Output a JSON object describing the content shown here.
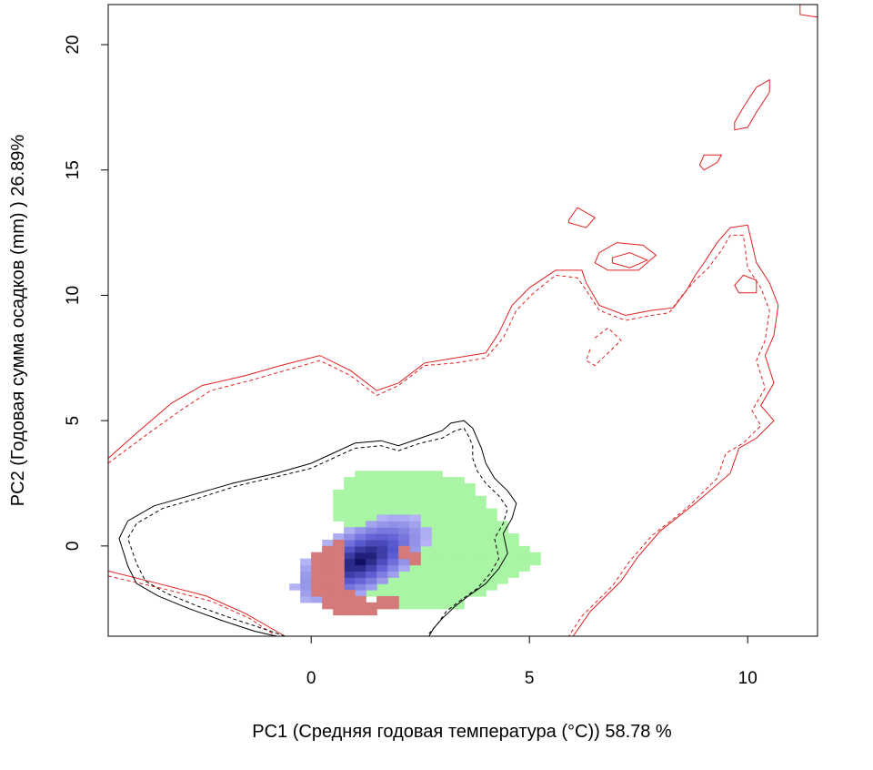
{
  "chart_data": {
    "type": "heatmap",
    "title": "",
    "xlabel": "PC1 (Средняя годовая температура (°C)) 58.78 %",
    "ylabel": "PC2 (Годовая сумма осадков  (mm) ) 26.89%",
    "xlim": [
      -4.65,
      11.6
    ],
    "ylim": [
      -3.6,
      21.6
    ],
    "x_ticks": [
      0,
      5,
      10
    ],
    "x_tick_labels": [
      "0",
      "5",
      "10"
    ],
    "y_ticks": [
      0,
      5,
      10,
      15,
      20
    ],
    "y_tick_labels": [
      "0",
      "5",
      "10",
      "15",
      "20"
    ],
    "grid": false,
    "legend": "none",
    "colors": {
      "green_region": "#aaf5a5",
      "blue_light": "#b4b4f5",
      "blue_mid": "#5a5ad2",
      "blue_dark": "#0a0a5a",
      "red_overlap": "#d47a7a",
      "red_contour": "#e02020",
      "black_contour": "#000000"
    },
    "grid_cell": 0.25,
    "green_cells": [
      [
        0.5,
        1.0,
        2.0
      ],
      [
        0.75,
        -0.5,
        2.5
      ],
      [
        1.0,
        -1.25,
        2.75
      ],
      [
        1.25,
        -2.0,
        2.75
      ],
      [
        1.5,
        -2.5,
        2.75
      ],
      [
        1.75,
        -2.5,
        2.75
      ],
      [
        2.0,
        -2.5,
        2.75
      ],
      [
        2.25,
        -2.5,
        2.75
      ],
      [
        2.5,
        -2.5,
        2.75
      ],
      [
        2.75,
        -2.5,
        2.75
      ],
      [
        3.0,
        -2.5,
        2.5
      ],
      [
        3.25,
        -2.5,
        2.5
      ],
      [
        3.5,
        -2.0,
        2.25
      ],
      [
        3.75,
        -2.0,
        1.75
      ],
      [
        4.0,
        -1.75,
        1.25
      ],
      [
        4.25,
        -1.5,
        0.75
      ],
      [
        4.5,
        -1.25,
        0.25
      ],
      [
        4.75,
        -1.0,
        -0.25
      ],
      [
        5.0,
        -0.75,
        -0.5
      ]
    ],
    "blue_density": {
      "center": [
        1.15,
        -0.55
      ],
      "major_axis": 2.1,
      "minor_axis": 1.05,
      "angle_deg": 52
    },
    "red_overlap_cells": [
      [
        0.0,
        -1.5,
        -0.5
      ],
      [
        0.0,
        -2.0,
        -1.75
      ],
      [
        0.25,
        -2.5,
        -0.25
      ],
      [
        0.5,
        -2.75,
        0.0
      ],
      [
        0.75,
        -2.75,
        -2.0
      ],
      [
        1.0,
        -2.75,
        -2.25
      ],
      [
        1.25,
        -2.75,
        -2.5
      ],
      [
        1.5,
        -2.5,
        -2.25
      ],
      [
        1.75,
        -2.5,
        -2.25
      ],
      [
        2.0,
        -0.5,
        -0.25
      ],
      [
        2.25,
        -0.75,
        -0.5
      ]
    ],
    "contours": [
      {
        "color": "red",
        "dash": false,
        "points": [
          [
            -4.65,
            3.5
          ],
          [
            -4.0,
            4.5
          ],
          [
            -3.2,
            5.7
          ],
          [
            -2.5,
            6.4
          ],
          [
            -1.5,
            6.8
          ],
          [
            -0.7,
            7.2
          ],
          [
            0.2,
            7.6
          ],
          [
            0.9,
            7.0
          ],
          [
            1.5,
            6.2
          ],
          [
            2.0,
            6.5
          ],
          [
            2.6,
            7.3
          ],
          [
            3.3,
            7.5
          ],
          [
            4.0,
            7.7
          ],
          [
            4.3,
            8.5
          ],
          [
            4.6,
            9.6
          ],
          [
            5.0,
            10.3
          ],
          [
            5.6,
            11.0
          ],
          [
            6.2,
            11.0
          ],
          [
            6.3,
            10.5
          ],
          [
            6.6,
            9.6
          ],
          [
            7.2,
            9.2
          ],
          [
            7.8,
            9.4
          ],
          [
            8.3,
            9.5
          ],
          [
            8.6,
            10.2
          ],
          [
            8.8,
            10.8
          ],
          [
            9.0,
            11.3
          ],
          [
            9.3,
            12.1
          ],
          [
            9.6,
            12.7
          ],
          [
            10.0,
            12.8
          ],
          [
            10.2,
            11.3
          ],
          [
            10.5,
            10.5
          ],
          [
            10.7,
            9.6
          ],
          [
            10.6,
            8.4
          ],
          [
            10.4,
            7.6
          ],
          [
            10.6,
            6.5
          ],
          [
            10.3,
            5.6
          ],
          [
            10.6,
            5.0
          ],
          [
            10.2,
            4.3
          ],
          [
            9.8,
            3.9
          ],
          [
            9.6,
            2.9
          ],
          [
            8.8,
            1.7
          ],
          [
            8.0,
            0.6
          ],
          [
            7.5,
            -0.4
          ],
          [
            7.1,
            -1.4
          ],
          [
            6.4,
            -2.6
          ],
          [
            6.0,
            -3.6
          ]
        ]
      },
      {
        "color": "red",
        "dash": false,
        "points": [
          [
            -4.65,
            -1.0
          ],
          [
            -3.5,
            -1.5
          ],
          [
            -2.4,
            -2.0
          ],
          [
            -1.5,
            -2.7
          ],
          [
            -0.8,
            -3.4
          ],
          [
            -0.6,
            -3.6
          ]
        ]
      },
      {
        "color": "red",
        "dash": false,
        "closed": true,
        "points": [
          [
            5.9,
            13.0
          ],
          [
            6.1,
            13.5
          ],
          [
            6.5,
            13.1
          ],
          [
            6.3,
            12.7
          ],
          [
            5.9,
            12.9
          ]
        ]
      },
      {
        "color": "red",
        "dash": false,
        "closed": true,
        "points": [
          [
            6.6,
            11.7
          ],
          [
            7.0,
            12.1
          ],
          [
            7.6,
            12.0
          ],
          [
            7.9,
            11.6
          ],
          [
            7.5,
            11.0
          ],
          [
            6.8,
            11.0
          ],
          [
            6.5,
            11.3
          ]
        ]
      },
      {
        "color": "red",
        "dash": false,
        "closed": true,
        "points": [
          [
            6.9,
            11.5
          ],
          [
            7.3,
            11.7
          ],
          [
            7.7,
            11.4
          ],
          [
            7.3,
            11.1
          ],
          [
            6.9,
            11.3
          ]
        ]
      },
      {
        "color": "red",
        "dash": false,
        "closed": true,
        "points": [
          [
            9.0,
            15.0
          ],
          [
            9.3,
            15.3
          ],
          [
            9.4,
            15.6
          ],
          [
            9.0,
            15.6
          ],
          [
            8.9,
            15.2
          ]
        ]
      },
      {
        "color": "red",
        "dash": false,
        "closed": true,
        "points": [
          [
            9.7,
            16.9
          ],
          [
            9.9,
            17.5
          ],
          [
            10.2,
            18.3
          ],
          [
            10.5,
            18.6
          ],
          [
            10.5,
            18.1
          ],
          [
            10.2,
            17.3
          ],
          [
            10.0,
            16.7
          ],
          [
            9.7,
            16.6
          ]
        ]
      },
      {
        "color": "red",
        "dash": false,
        "closed": true,
        "points": [
          [
            9.7,
            10.4
          ],
          [
            9.9,
            10.8
          ],
          [
            10.2,
            10.6
          ],
          [
            10.2,
            10.1
          ],
          [
            9.8,
            10.1
          ]
        ]
      },
      {
        "color": "red",
        "dash": false,
        "points": [
          [
            11.2,
            21.6
          ],
          [
            11.2,
            21.2
          ],
          [
            11.6,
            21.1
          ]
        ]
      },
      {
        "color": "red",
        "dash": true,
        "points": [
          [
            -4.65,
            3.3
          ],
          [
            -3.8,
            4.4
          ],
          [
            -3.0,
            5.4
          ],
          [
            -2.3,
            6.2
          ],
          [
            -1.4,
            6.6
          ],
          [
            -0.6,
            7.0
          ],
          [
            0.2,
            7.4
          ],
          [
            0.9,
            6.8
          ],
          [
            1.5,
            6.0
          ],
          [
            2.0,
            6.4
          ],
          [
            2.6,
            7.2
          ],
          [
            3.3,
            7.3
          ],
          [
            4.0,
            7.5
          ],
          [
            4.4,
            8.3
          ],
          [
            4.7,
            9.4
          ],
          [
            5.1,
            10.1
          ],
          [
            5.6,
            10.8
          ],
          [
            6.1,
            10.7
          ],
          [
            6.3,
            10.2
          ],
          [
            6.6,
            9.4
          ],
          [
            7.2,
            9.0
          ],
          [
            7.8,
            9.2
          ],
          [
            8.2,
            9.3
          ],
          [
            8.5,
            10.0
          ],
          [
            8.8,
            10.6
          ],
          [
            9.1,
            11.1
          ],
          [
            9.4,
            11.8
          ],
          [
            9.6,
            12.4
          ],
          [
            9.9,
            12.4
          ],
          [
            10.0,
            11.1
          ],
          [
            10.3,
            10.3
          ],
          [
            10.5,
            9.4
          ],
          [
            10.4,
            8.2
          ],
          [
            10.2,
            7.4
          ],
          [
            10.4,
            6.3
          ],
          [
            10.1,
            5.4
          ],
          [
            10.3,
            4.8
          ],
          [
            9.9,
            4.1
          ],
          [
            9.5,
            3.7
          ],
          [
            9.3,
            2.7
          ],
          [
            8.6,
            1.5
          ],
          [
            7.8,
            0.4
          ],
          [
            7.3,
            -0.6
          ],
          [
            6.9,
            -1.6
          ],
          [
            6.2,
            -2.8
          ],
          [
            5.9,
            -3.6
          ]
        ]
      },
      {
        "color": "red",
        "dash": true,
        "points": [
          [
            -4.65,
            -1.2
          ],
          [
            -3.4,
            -1.7
          ],
          [
            -2.3,
            -2.2
          ],
          [
            -1.4,
            -2.9
          ],
          [
            -0.8,
            -3.6
          ]
        ]
      },
      {
        "color": "red",
        "dash": true,
        "points": [
          [
            6.5,
            8.3
          ],
          [
            6.8,
            8.7
          ],
          [
            7.1,
            8.2
          ],
          [
            6.8,
            7.7
          ],
          [
            6.5,
            7.2
          ],
          [
            6.3,
            7.4
          ],
          [
            6.4,
            7.9
          ]
        ]
      },
      {
        "color": "black",
        "dash": false,
        "points": [
          [
            -0.8,
            -3.6
          ],
          [
            -1.3,
            -3.4
          ],
          [
            -2.0,
            -3.0
          ],
          [
            -2.8,
            -2.5
          ],
          [
            -3.5,
            -2.0
          ],
          [
            -4.0,
            -1.5
          ],
          [
            -4.2,
            -0.8
          ],
          [
            -4.4,
            0.3
          ],
          [
            -4.2,
            1.0
          ],
          [
            -3.6,
            1.6
          ],
          [
            -2.8,
            2.0
          ],
          [
            -1.8,
            2.5
          ],
          [
            -0.8,
            2.9
          ],
          [
            0.0,
            3.3
          ],
          [
            0.5,
            3.7
          ],
          [
            1.0,
            4.1
          ],
          [
            1.6,
            4.2
          ],
          [
            2.0,
            4.0
          ],
          [
            2.5,
            4.3
          ],
          [
            3.0,
            4.6
          ],
          [
            3.2,
            4.9
          ],
          [
            3.5,
            5.0
          ],
          [
            3.7,
            4.7
          ],
          [
            3.8,
            4.3
          ],
          [
            3.9,
            3.9
          ],
          [
            4.0,
            3.3
          ],
          [
            4.2,
            2.7
          ],
          [
            4.5,
            2.2
          ],
          [
            4.7,
            1.7
          ],
          [
            4.6,
            1.1
          ],
          [
            4.4,
            0.5
          ],
          [
            4.5,
            -0.3
          ],
          [
            4.3,
            -0.9
          ],
          [
            4.0,
            -1.5
          ],
          [
            3.6,
            -2.0
          ],
          [
            3.3,
            -2.4
          ],
          [
            3.0,
            -2.9
          ],
          [
            2.8,
            -3.3
          ],
          [
            2.7,
            -3.6
          ]
        ]
      },
      {
        "color": "black",
        "dash": true,
        "points": [
          [
            -0.6,
            -3.6
          ],
          [
            -1.1,
            -3.3
          ],
          [
            -1.8,
            -2.9
          ],
          [
            -2.6,
            -2.4
          ],
          [
            -3.3,
            -1.9
          ],
          [
            -3.8,
            -1.4
          ],
          [
            -4.0,
            -0.7
          ],
          [
            -4.2,
            0.3
          ],
          [
            -4.0,
            0.9
          ],
          [
            -3.4,
            1.5
          ],
          [
            -2.6,
            1.9
          ],
          [
            -1.7,
            2.4
          ],
          [
            -0.7,
            2.8
          ],
          [
            0.0,
            3.1
          ],
          [
            0.5,
            3.5
          ],
          [
            1.0,
            3.9
          ],
          [
            1.6,
            4.0
          ],
          [
            2.0,
            3.8
          ],
          [
            2.5,
            4.1
          ],
          [
            3.0,
            4.3
          ],
          [
            3.3,
            4.6
          ],
          [
            3.5,
            4.7
          ],
          [
            3.6,
            4.4
          ],
          [
            3.7,
            4.0
          ],
          [
            3.7,
            3.5
          ],
          [
            3.8,
            3.0
          ],
          [
            4.0,
            2.5
          ],
          [
            4.3,
            2.0
          ],
          [
            4.5,
            1.5
          ],
          [
            4.4,
            0.9
          ],
          [
            4.2,
            0.3
          ],
          [
            4.3,
            -0.5
          ],
          [
            4.1,
            -1.1
          ],
          [
            3.8,
            -1.7
          ],
          [
            3.4,
            -2.2
          ],
          [
            3.1,
            -2.6
          ],
          [
            2.9,
            -3.1
          ],
          [
            2.7,
            -3.5
          ]
        ]
      }
    ]
  }
}
